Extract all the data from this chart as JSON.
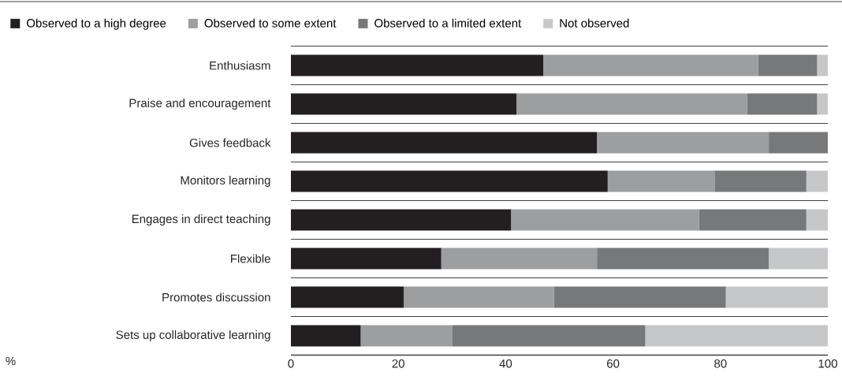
{
  "chart_data": {
    "type": "bar",
    "orientation": "horizontal",
    "stacked": true,
    "categories": [
      "Enthusiasm",
      "Praise and encouragement",
      "Gives feedback",
      "Monitors learning",
      "Engages in direct teaching",
      "Flexible",
      "Promotes discussion",
      "Sets up collaborative learning"
    ],
    "series": [
      {
        "name": "Observed to a high degree",
        "color": "#231f20",
        "values": [
          47,
          42,
          57,
          59,
          41,
          28,
          21,
          13
        ]
      },
      {
        "name": "Observed to some extent",
        "color": "#9d9e9f",
        "values": [
          40,
          43,
          32,
          20,
          35,
          29,
          28,
          17
        ]
      },
      {
        "name": "Observed to a limited extent",
        "color": "#77787a",
        "values": [
          11,
          13,
          11,
          17,
          20,
          32,
          32,
          36
        ]
      },
      {
        "name": "Not observed",
        "color": "#c6c7c8",
        "values": [
          2,
          2,
          0,
          4,
          4,
          11,
          19,
          34
        ]
      }
    ],
    "annotations": [
      "%"
    ],
    "xlim": [
      0,
      100
    ],
    "xticks": [
      0,
      20,
      40,
      60,
      80,
      100
    ],
    "grid": "y",
    "legend": "top"
  }
}
